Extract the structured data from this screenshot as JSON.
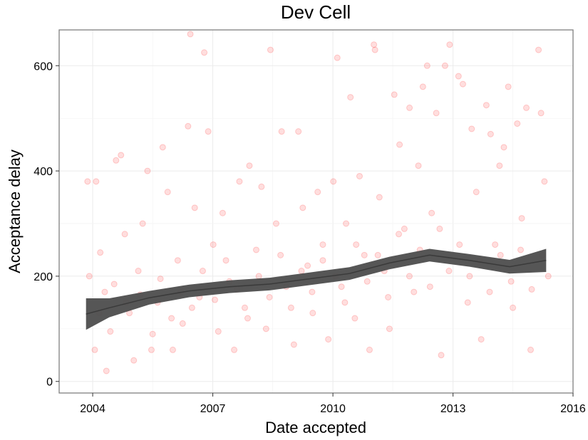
{
  "chart_data": {
    "type": "scatter",
    "title": "Dev Cell",
    "xlabel": "Date accepted",
    "ylabel": "Acceptance delay",
    "x_ticks": [
      "2004",
      "2007",
      "2010",
      "2013",
      "2016"
    ],
    "y_ticks": [
      0,
      200,
      400,
      600
    ],
    "xlim": [
      "2003-03-01",
      "2016-01-01"
    ],
    "ylim": [
      -22,
      668
    ],
    "grid": true,
    "legend": "none",
    "point_color": "#ff0000",
    "point_opacity": 0.13,
    "trend_band_color": "#4d4d4d",
    "trend_line": [
      {
        "x": "2003-11-01",
        "y": 128
      },
      {
        "x": "2004-06-01",
        "y": 140
      },
      {
        "x": "2005-06-01",
        "y": 159
      },
      {
        "x": "2006-06-01",
        "y": 172
      },
      {
        "x": "2007-06-01",
        "y": 180
      },
      {
        "x": "2008-06-01",
        "y": 185
      },
      {
        "x": "2009-06-01",
        "y": 195
      },
      {
        "x": "2010-06-01",
        "y": 205
      },
      {
        "x": "2011-06-01",
        "y": 225
      },
      {
        "x": "2012-06-01",
        "y": 240
      },
      {
        "x": "2013-06-01",
        "y": 230
      },
      {
        "x": "2014-06-01",
        "y": 218
      },
      {
        "x": "2015-05-01",
        "y": 230
      }
    ],
    "trend_band_halfwidth": [
      30,
      18,
      13,
      12,
      12,
      12,
      12,
      12,
      12,
      12,
      12,
      13,
      22
    ],
    "points": [
      {
        "x": "2003-11-15",
        "y": 380
      },
      {
        "x": "2004-02-01",
        "y": 380
      },
      {
        "x": "2004-03-10",
        "y": 245
      },
      {
        "x": "2003-12-01",
        "y": 200
      },
      {
        "x": "2004-04-20",
        "y": 170
      },
      {
        "x": "2004-01-20",
        "y": 60
      },
      {
        "x": "2004-05-05",
        "y": 20
      },
      {
        "x": "2004-06-10",
        "y": 95
      },
      {
        "x": "2004-08-01",
        "y": 420
      },
      {
        "x": "2004-09-15",
        "y": 430
      },
      {
        "x": "2004-10-20",
        "y": 280
      },
      {
        "x": "2004-12-01",
        "y": 130
      },
      {
        "x": "2005-01-10",
        "y": 40
      },
      {
        "x": "2005-02-20",
        "y": 210
      },
      {
        "x": "2005-04-01",
        "y": 300
      },
      {
        "x": "2005-05-15",
        "y": 400
      },
      {
        "x": "2005-07-01",
        "y": 90
      },
      {
        "x": "2005-08-15",
        "y": 150
      },
      {
        "x": "2005-10-01",
        "y": 445
      },
      {
        "x": "2005-11-15",
        "y": 360
      },
      {
        "x": "2006-01-01",
        "y": 60
      },
      {
        "x": "2006-02-15",
        "y": 230
      },
      {
        "x": "2006-04-01",
        "y": 110
      },
      {
        "x": "2006-05-20",
        "y": 485
      },
      {
        "x": "2006-06-10",
        "y": 660
      },
      {
        "x": "2006-07-20",
        "y": 330
      },
      {
        "x": "2006-09-01",
        "y": 160
      },
      {
        "x": "2006-10-15",
        "y": 625
      },
      {
        "x": "2006-11-20",
        "y": 475
      },
      {
        "x": "2007-01-05",
        "y": 260
      },
      {
        "x": "2007-02-20",
        "y": 95
      },
      {
        "x": "2007-04-01",
        "y": 320
      },
      {
        "x": "2007-06-01",
        "y": 190
      },
      {
        "x": "2007-07-15",
        "y": 60
      },
      {
        "x": "2007-09-01",
        "y": 380
      },
      {
        "x": "2007-10-20",
        "y": 140
      },
      {
        "x": "2007-12-01",
        "y": 410
      },
      {
        "x": "2008-02-01",
        "y": 250
      },
      {
        "x": "2008-03-20",
        "y": 370
      },
      {
        "x": "2008-05-01",
        "y": 100
      },
      {
        "x": "2008-06-10",
        "y": 630
      },
      {
        "x": "2008-08-01",
        "y": 300
      },
      {
        "x": "2008-09-20",
        "y": 475
      },
      {
        "x": "2008-11-01",
        "y": 180
      },
      {
        "x": "2009-01-10",
        "y": 70
      },
      {
        "x": "2009-02-20",
        "y": 475
      },
      {
        "x": "2009-04-01",
        "y": 330
      },
      {
        "x": "2009-05-15",
        "y": 220
      },
      {
        "x": "2009-07-01",
        "y": 130
      },
      {
        "x": "2009-08-15",
        "y": 360
      },
      {
        "x": "2009-10-01",
        "y": 260
      },
      {
        "x": "2009-11-20",
        "y": 80
      },
      {
        "x": "2010-01-05",
        "y": 380
      },
      {
        "x": "2010-02-10",
        "y": 615
      },
      {
        "x": "2010-03-20",
        "y": 180
      },
      {
        "x": "2010-05-01",
        "y": 300
      },
      {
        "x": "2010-06-10",
        "y": 540
      },
      {
        "x": "2010-07-20",
        "y": 120
      },
      {
        "x": "2010-09-01",
        "y": 390
      },
      {
        "x": "2010-10-15",
        "y": 240
      },
      {
        "x": "2010-12-01",
        "y": 60
      },
      {
        "x": "2011-01-10",
        "y": 640
      },
      {
        "x": "2011-01-20",
        "y": 630
      },
      {
        "x": "2011-03-01",
        "y": 350
      },
      {
        "x": "2011-04-15",
        "y": 210
      },
      {
        "x": "2011-06-01",
        "y": 100
      },
      {
        "x": "2011-07-15",
        "y": 545
      },
      {
        "x": "2011-09-01",
        "y": 450
      },
      {
        "x": "2011-10-15",
        "y": 290
      },
      {
        "x": "2011-12-01",
        "y": 520
      },
      {
        "x": "2012-01-10",
        "y": 170
      },
      {
        "x": "2012-02-20",
        "y": 410
      },
      {
        "x": "2012-04-01",
        "y": 560
      },
      {
        "x": "2012-05-10",
        "y": 600
      },
      {
        "x": "2012-06-20",
        "y": 320
      },
      {
        "x": "2012-08-01",
        "y": 510
      },
      {
        "x": "2012-09-15",
        "y": 50
      },
      {
        "x": "2012-10-20",
        "y": 600
      },
      {
        "x": "2012-12-01",
        "y": 640
      },
      {
        "x": "2013-01-10",
        "y": 670
      },
      {
        "x": "2013-02-20",
        "y": 580
      },
      {
        "x": "2013-04-01",
        "y": 565
      },
      {
        "x": "2013-05-15",
        "y": 150
      },
      {
        "x": "2013-06-20",
        "y": 480
      },
      {
        "x": "2013-08-01",
        "y": 360
      },
      {
        "x": "2013-09-15",
        "y": 80
      },
      {
        "x": "2013-11-01",
        "y": 525
      },
      {
        "x": "2013-12-10",
        "y": 470
      },
      {
        "x": "2014-01-20",
        "y": 260
      },
      {
        "x": "2014-03-01",
        "y": 410
      },
      {
        "x": "2014-04-10",
        "y": 445
      },
      {
        "x": "2014-05-20",
        "y": 560
      },
      {
        "x": "2014-07-01",
        "y": 140
      },
      {
        "x": "2014-08-10",
        "y": 490
      },
      {
        "x": "2014-09-20",
        "y": 310
      },
      {
        "x": "2014-11-01",
        "y": 520
      },
      {
        "x": "2014-12-10",
        "y": 60
      },
      {
        "x": "2015-01-15",
        "y": 670
      },
      {
        "x": "2015-02-20",
        "y": 630
      },
      {
        "x": "2015-03-15",
        "y": 510
      },
      {
        "x": "2015-04-15",
        "y": 380
      },
      {
        "x": "2015-05-20",
        "y": 200
      },
      {
        "x": "2004-03-01",
        "y": 130
      },
      {
        "x": "2004-07-15",
        "y": 185
      },
      {
        "x": "2004-11-01",
        "y": 150
      },
      {
        "x": "2005-03-10",
        "y": 165
      },
      {
        "x": "2005-06-20",
        "y": 60
      },
      {
        "x": "2005-09-10",
        "y": 195
      },
      {
        "x": "2005-12-20",
        "y": 120
      },
      {
        "x": "2006-03-15",
        "y": 170
      },
      {
        "x": "2006-06-25",
        "y": 140
      },
      {
        "x": "2006-10-01",
        "y": 210
      },
      {
        "x": "2007-01-20",
        "y": 155
      },
      {
        "x": "2007-05-01",
        "y": 230
      },
      {
        "x": "2007-08-10",
        "y": 175
      },
      {
        "x": "2007-11-15",
        "y": 120
      },
      {
        "x": "2008-02-25",
        "y": 200
      },
      {
        "x": "2008-06-01",
        "y": 160
      },
      {
        "x": "2008-09-10",
        "y": 240
      },
      {
        "x": "2008-12-15",
        "y": 140
      },
      {
        "x": "2009-03-20",
        "y": 210
      },
      {
        "x": "2009-06-25",
        "y": 170
      },
      {
        "x": "2009-10-01",
        "y": 230
      },
      {
        "x": "2010-01-25",
        "y": 200
      },
      {
        "x": "2010-04-20",
        "y": 150
      },
      {
        "x": "2010-08-01",
        "y": 260
      },
      {
        "x": "2010-11-10",
        "y": 190
      },
      {
        "x": "2011-02-15",
        "y": 240
      },
      {
        "x": "2011-05-20",
        "y": 160
      },
      {
        "x": "2011-08-25",
        "y": 280
      },
      {
        "x": "2011-11-30",
        "y": 200
      },
      {
        "x": "2012-03-05",
        "y": 250
      },
      {
        "x": "2012-06-05",
        "y": 180
      },
      {
        "x": "2012-09-01",
        "y": 290
      },
      {
        "x": "2012-11-25",
        "y": 210
      },
      {
        "x": "2013-03-01",
        "y": 260
      },
      {
        "x": "2013-06-01",
        "y": 200
      },
      {
        "x": "2013-09-01",
        "y": 230
      },
      {
        "x": "2013-12-01",
        "y": 170
      },
      {
        "x": "2014-03-10",
        "y": 240
      },
      {
        "x": "2014-06-15",
        "y": 190
      },
      {
        "x": "2014-09-10",
        "y": 250
      },
      {
        "x": "2014-12-20",
        "y": 175
      },
      {
        "x": "2015-03-25",
        "y": 240
      }
    ]
  }
}
